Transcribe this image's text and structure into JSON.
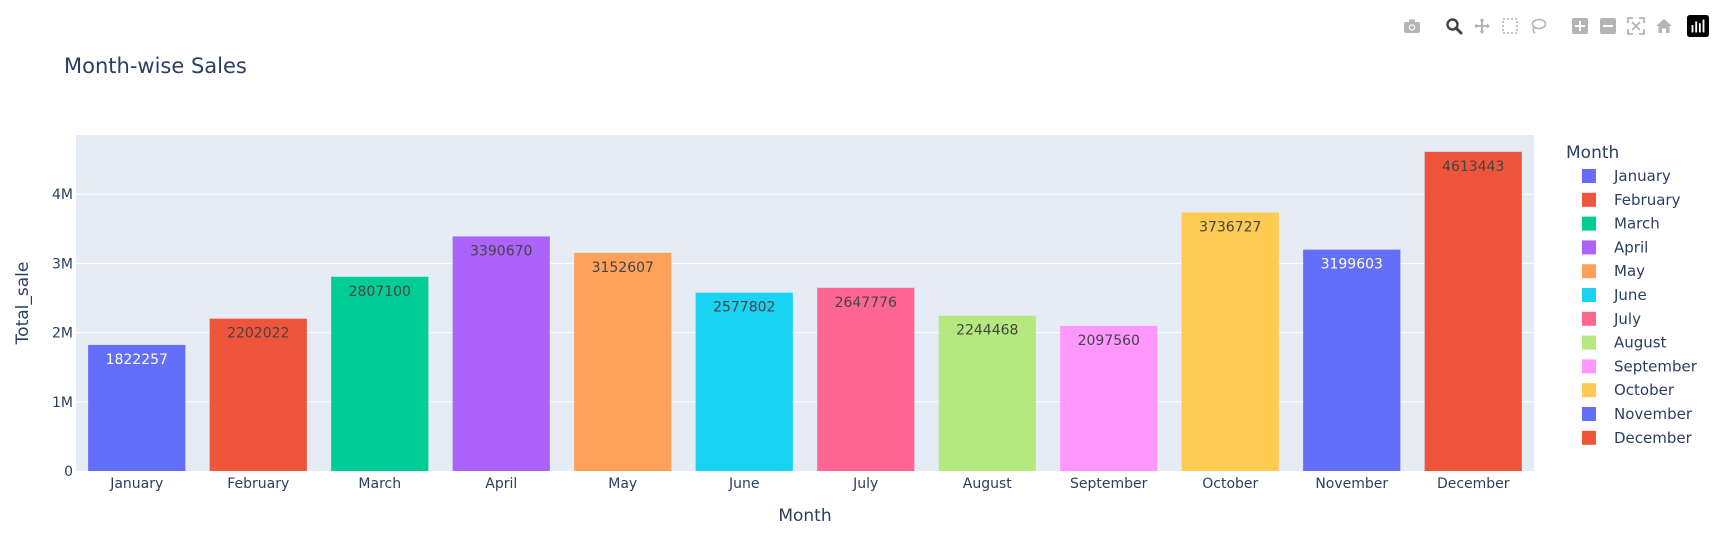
{
  "toolbar": {
    "icons": [
      "camera-icon",
      "zoom-icon",
      "pan-icon",
      "box-select-icon",
      "lasso-select-icon",
      "zoom-in-icon",
      "zoom-out-icon",
      "autoscale-icon",
      "reset-axes-icon",
      "plotly-logo-icon"
    ]
  },
  "chart_data": {
    "type": "bar",
    "title": "Month-wise Sales",
    "xlabel": "Month",
    "ylabel": "Total_sale",
    "ylim": [
      0,
      4856256
    ],
    "yticks": [
      0,
      1000000,
      2000000,
      3000000,
      4000000
    ],
    "ytick_labels": [
      "0",
      "1M",
      "2M",
      "3M",
      "4M"
    ],
    "grid": true,
    "legend": {
      "title": "Month",
      "placement": "right"
    },
    "categories": [
      "January",
      "February",
      "March",
      "April",
      "May",
      "June",
      "July",
      "August",
      "September",
      "October",
      "November",
      "December"
    ],
    "values": [
      1822257,
      2202022,
      2807100,
      3390670,
      3152607,
      2577802,
      2647776,
      2244468,
      2097560,
      3736727,
      3199603,
      4613443
    ],
    "colors": [
      "#636efa",
      "#ef553b",
      "#00cc96",
      "#ab63fa",
      "#ffa15a",
      "#19d3f3",
      "#ff6692",
      "#b6e880",
      "#ff97ff",
      "#fecb52",
      "#636efa",
      "#ef553b"
    ],
    "label_colors": [
      "#ffffff",
      "#444444",
      "#444444",
      "#444444",
      "#444444",
      "#444444",
      "#444444",
      "#444444",
      "#444444",
      "#444444",
      "#ffffff",
      "#444444"
    ]
  }
}
